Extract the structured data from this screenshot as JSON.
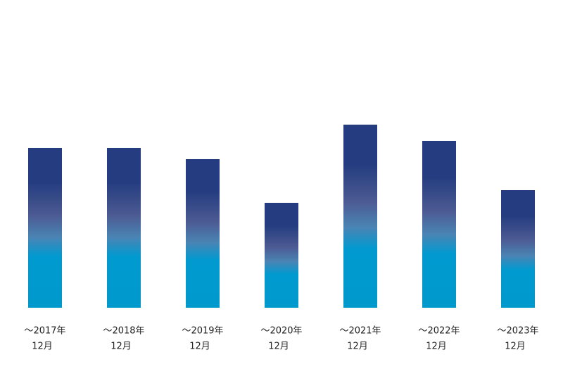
{
  "chart_data": {
    "type": "bar",
    "categories": [
      [
        "～2017年",
        "12月"
      ],
      [
        "～2018年",
        "12月"
      ],
      [
        "～2019年",
        "12月"
      ],
      [
        "～2020年",
        "12月"
      ],
      [
        "～2021年",
        "12月"
      ],
      [
        "～2022年",
        "12月"
      ],
      [
        "～2023年",
        "12月"
      ]
    ],
    "values": [
      227,
      227,
      211,
      149,
      260,
      237,
      167
    ],
    "gradient": [
      "#253d80",
      "#253d80",
      "#4c5a92",
      "#4a84b4",
      "#009ad0",
      "#0099cc"
    ]
  }
}
